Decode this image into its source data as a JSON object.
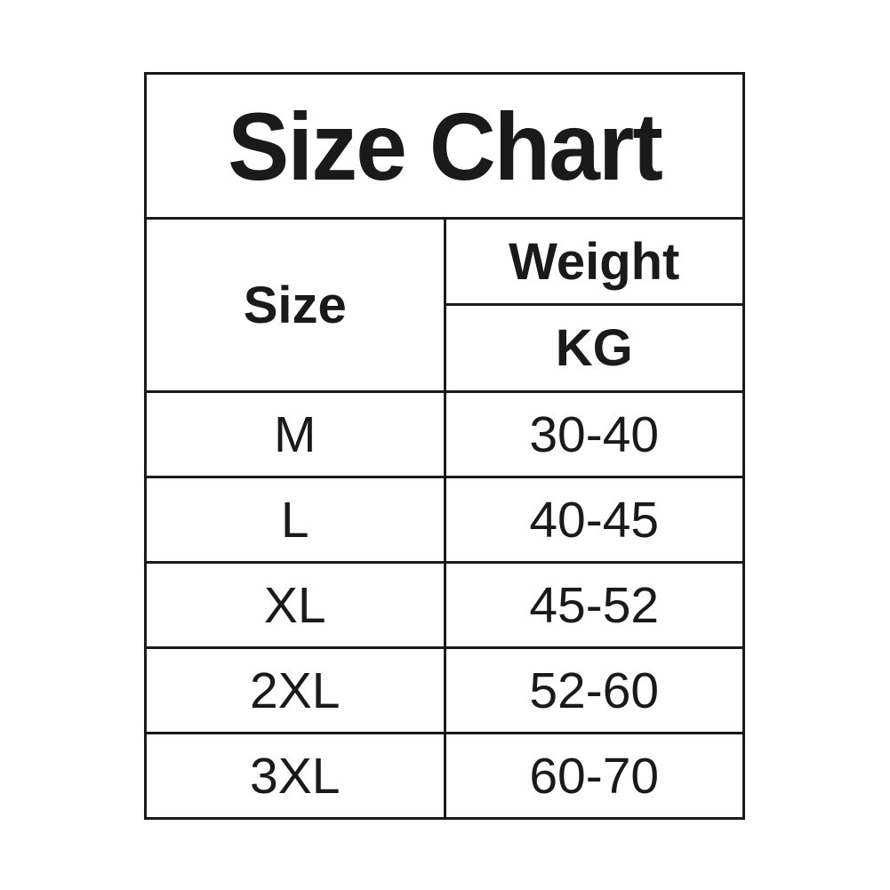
{
  "title": "Size Chart",
  "table": {
    "size_header": "Size",
    "weight_header": "Weight",
    "unit_header": "KG",
    "rows": [
      {
        "size": "M",
        "weight": "30-40"
      },
      {
        "size": "L",
        "weight": "40-45"
      },
      {
        "size": "XL",
        "weight": "45-52"
      },
      {
        "size": "2XL",
        "weight": "52-60"
      },
      {
        "size": "3XL",
        "weight": "60-70"
      }
    ]
  },
  "chart_data": {
    "type": "table",
    "title": "Size Chart",
    "columns": [
      "Size",
      "Weight KG"
    ],
    "rows": [
      [
        "M",
        "30-40"
      ],
      [
        "L",
        "40-45"
      ],
      [
        "XL",
        "45-52"
      ],
      [
        "2XL",
        "52-60"
      ],
      [
        "3XL",
        "60-70"
      ]
    ],
    "weight_ranges_kg": {
      "M": [
        30,
        40
      ],
      "L": [
        40,
        45
      ],
      "XL": [
        45,
        52
      ],
      "2XL": [
        52,
        60
      ],
      "3XL": [
        60,
        70
      ]
    }
  },
  "colors": {
    "background": "#ffffff",
    "border": "#1a1a1a",
    "text": "#1a1a1a"
  }
}
